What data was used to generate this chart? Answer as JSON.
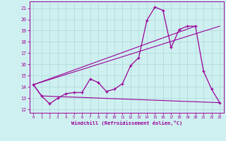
{
  "xlabel": "Windchill (Refroidissement éolien,°C)",
  "bg_color": "#cff0f0",
  "grid_color": "#aad8d8",
  "line_color": "#990099",
  "x_ticks": [
    0,
    1,
    2,
    3,
    4,
    5,
    6,
    7,
    8,
    9,
    10,
    11,
    12,
    13,
    14,
    15,
    16,
    17,
    18,
    19,
    20,
    21,
    22,
    23
  ],
  "y_ticks": [
    12,
    13,
    14,
    15,
    16,
    17,
    18,
    19,
    20,
    21
  ],
  "ylim": [
    11.7,
    21.6
  ],
  "xlim": [
    -0.5,
    23.5
  ],
  "series1_x": [
    0,
    1,
    2,
    3,
    4,
    5,
    6,
    7,
    8,
    9,
    10,
    11,
    12,
    13,
    14,
    15,
    16,
    17,
    18,
    19,
    20,
    21,
    22,
    23
  ],
  "series1_y": [
    14.2,
    13.2,
    12.5,
    13.0,
    13.4,
    13.5,
    13.5,
    14.7,
    14.4,
    13.6,
    13.8,
    14.3,
    15.9,
    16.6,
    19.9,
    21.1,
    20.8,
    17.5,
    19.1,
    19.4,
    19.4,
    15.4,
    13.8,
    12.6
  ],
  "series2_x": [
    0,
    1,
    23
  ],
  "series2_y": [
    14.2,
    13.2,
    12.6
  ],
  "series3_x": [
    0,
    20
  ],
  "series3_y": [
    14.2,
    19.4
  ],
  "series4_x": [
    0,
    23
  ],
  "series4_y": [
    14.2,
    19.4
  ]
}
